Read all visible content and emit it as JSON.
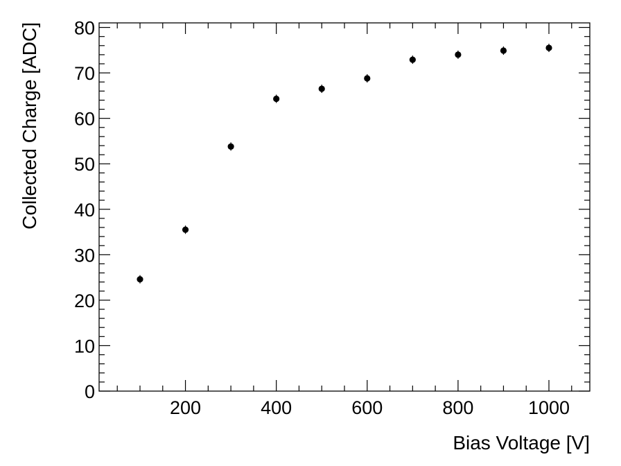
{
  "chart_data": {
    "type": "scatter",
    "title": "",
    "xlabel": "Bias Voltage [V]",
    "ylabel": "Collected Charge [ADC]",
    "xlim": [
      10,
      1090
    ],
    "ylim": [
      0,
      81
    ],
    "x_ticks": [
      200,
      400,
      600,
      800,
      1000
    ],
    "y_ticks": [
      0,
      10,
      20,
      30,
      40,
      50,
      60,
      70,
      80
    ],
    "grid": false,
    "series": [
      {
        "x": [
          100,
          200,
          300,
          400,
          500,
          600,
          700,
          800,
          900,
          1000
        ],
        "y": [
          24.6,
          35.5,
          53.8,
          64.3,
          66.5,
          68.8,
          72.9,
          74.0,
          74.9,
          75.5
        ],
        "color": "#000000",
        "marker": "filled-circle"
      }
    ]
  }
}
